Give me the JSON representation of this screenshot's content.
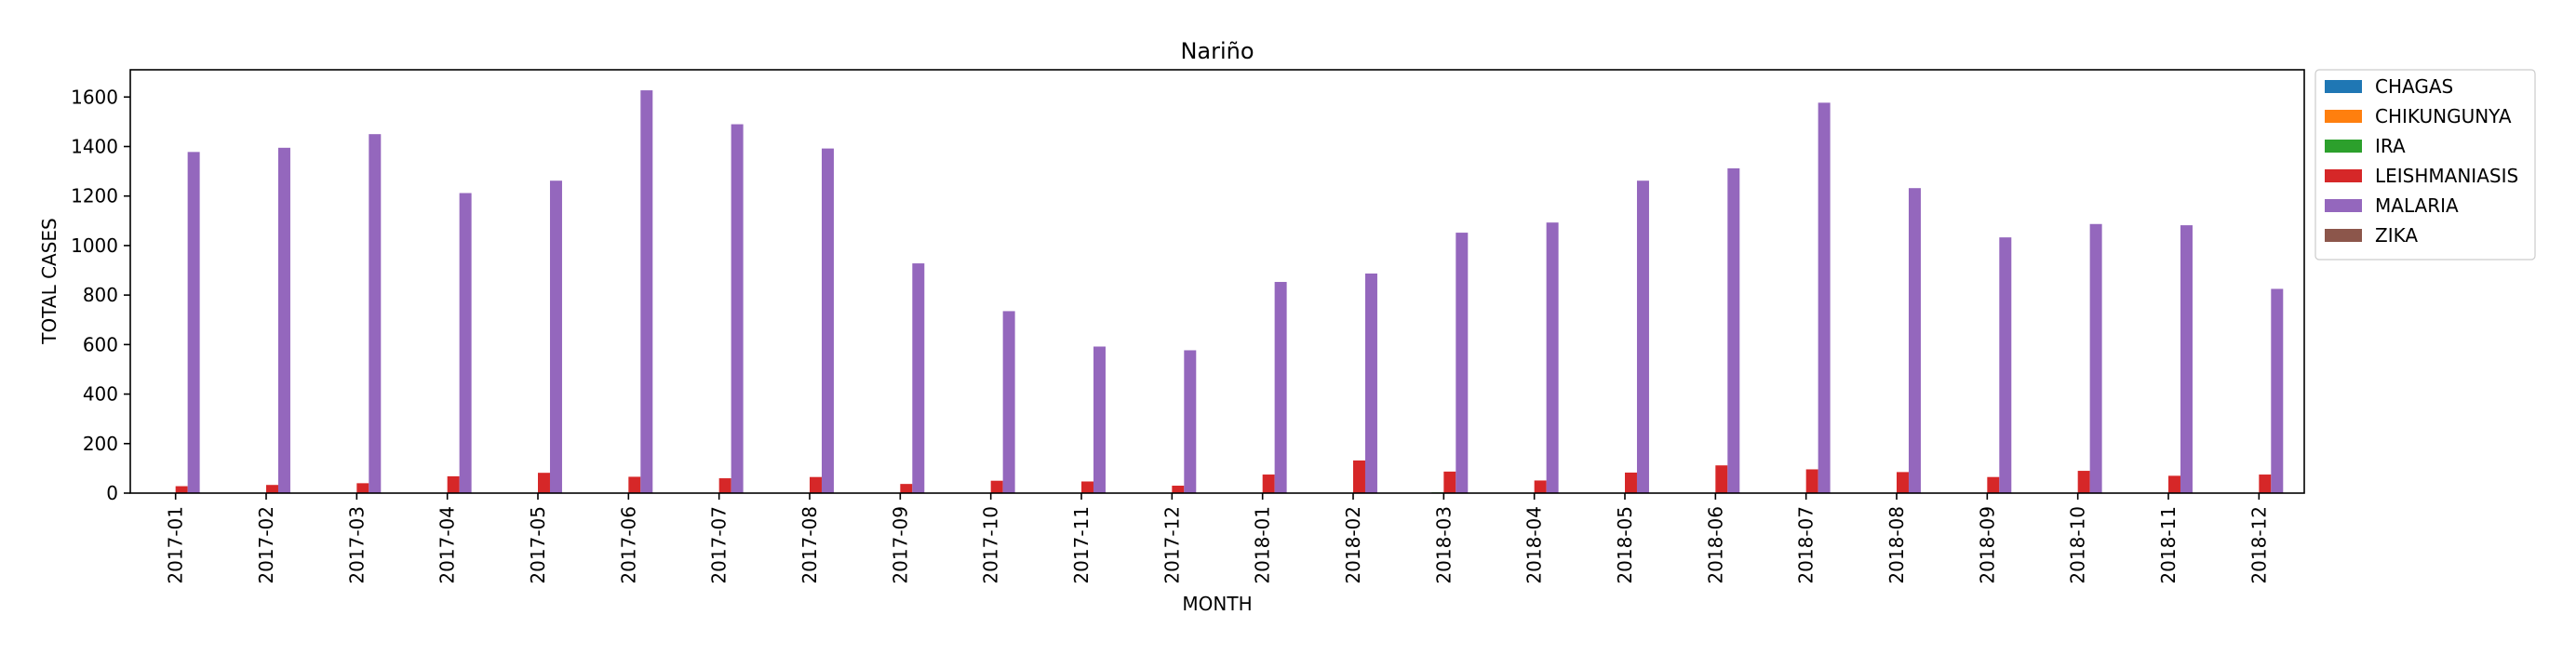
{
  "chart_data": {
    "type": "bar",
    "title": "Nariño",
    "xlabel": "MONTH",
    "ylabel": "TOTAL CASES",
    "ylim": [
      0,
      1710
    ],
    "yticks": [
      0,
      200,
      400,
      600,
      800,
      1000,
      1200,
      1400,
      1600
    ],
    "grid": false,
    "legend_position": "outside-top-right",
    "categories": [
      "2017-01",
      "2017-02",
      "2017-03",
      "2017-04",
      "2017-05",
      "2017-06",
      "2017-07",
      "2017-08",
      "2017-09",
      "2017-10",
      "2017-11",
      "2017-12",
      "2018-01",
      "2018-02",
      "2018-03",
      "2018-04",
      "2018-05",
      "2018-06",
      "2018-07",
      "2018-08",
      "2018-09",
      "2018-10",
      "2018-11",
      "2018-12"
    ],
    "series": [
      {
        "name": "CHAGAS",
        "color": "#1f77b4",
        "values": [
          0,
          0,
          0,
          0,
          0,
          0,
          0,
          0,
          0,
          0,
          0,
          0,
          0,
          0,
          0,
          0,
          0,
          0,
          0,
          0,
          0,
          0,
          0,
          0
        ]
      },
      {
        "name": "CHIKUNGUNYA",
        "color": "#ff7f0e",
        "values": [
          0,
          0,
          0,
          0,
          0,
          0,
          0,
          0,
          0,
          0,
          0,
          0,
          0,
          0,
          0,
          0,
          0,
          0,
          0,
          0,
          0,
          0,
          0,
          0
        ]
      },
      {
        "name": "IRA",
        "color": "#2ca02c",
        "values": [
          0,
          0,
          0,
          0,
          0,
          0,
          0,
          0,
          0,
          0,
          0,
          0,
          0,
          0,
          3,
          0,
          0,
          0,
          0,
          0,
          0,
          0,
          0,
          0
        ]
      },
      {
        "name": "LEISHMANIASIS",
        "color": "#d62728",
        "values": [
          28,
          33,
          40,
          68,
          82,
          66,
          60,
          65,
          37,
          50,
          47,
          30,
          75,
          132,
          87,
          51,
          83,
          112,
          96,
          85,
          65,
          90,
          70,
          75
        ]
      },
      {
        "name": "MALARIA",
        "color": "#9467bd",
        "values": [
          1378,
          1395,
          1450,
          1212,
          1262,
          1627,
          1490,
          1392,
          928,
          735,
          592,
          577,
          853,
          887,
          1052,
          1093,
          1262,
          1312,
          1577,
          1232,
          1033,
          1087,
          1082,
          825
        ]
      },
      {
        "name": "ZIKA",
        "color": "#8c564b",
        "values": [
          0,
          0,
          0,
          0,
          0,
          0,
          0,
          0,
          0,
          0,
          0,
          0,
          0,
          0,
          0,
          0,
          0,
          0,
          0,
          0,
          0,
          0,
          0,
          0
        ]
      }
    ]
  }
}
